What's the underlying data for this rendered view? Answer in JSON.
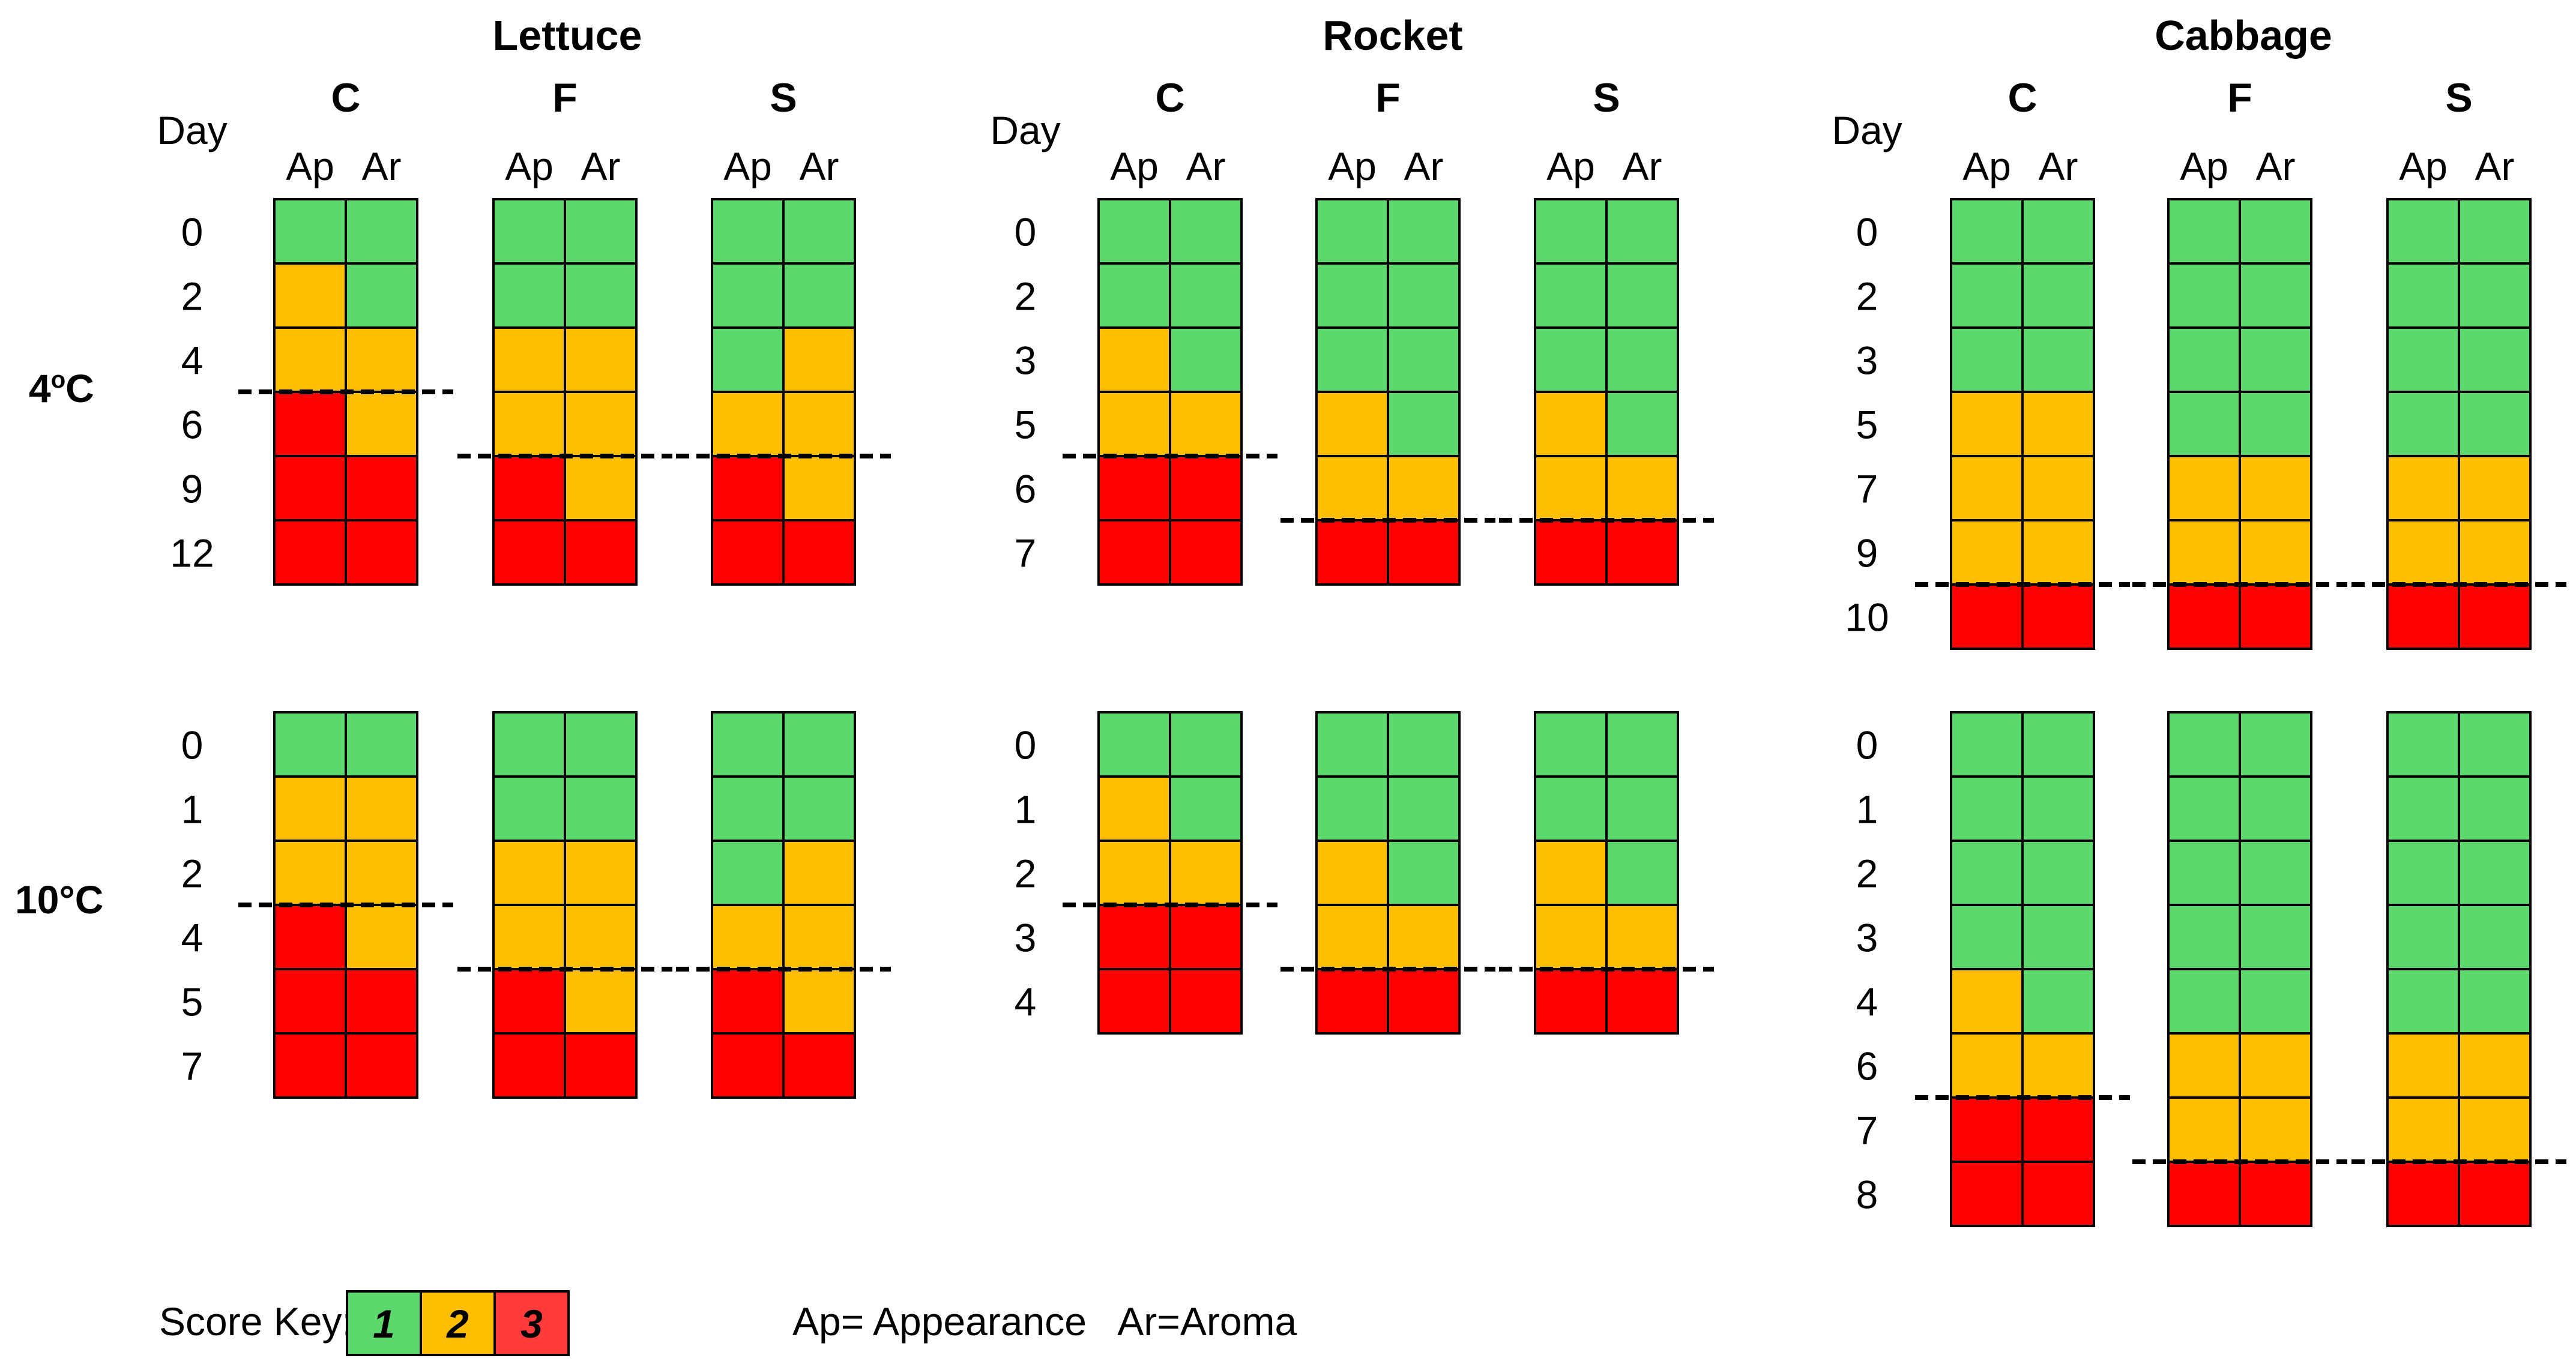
{
  "colors": {
    "1": "#5dd86c",
    "2": "#ffbf00",
    "3": "#ff0000",
    "key3": "#ff3b3b",
    "line": "#000000",
    "border": "#000000"
  },
  "day_label": "Day",
  "column_labels": [
    "Ap",
    "Ar"
  ],
  "treatments": [
    "C",
    "F",
    "S"
  ],
  "temperatures": [
    {
      "label_main": "4",
      "label_deg": "o",
      "label_unit": "C"
    },
    {
      "label_main": "10°C"
    }
  ],
  "crops": [
    {
      "name": "Lettuce",
      "rows": [
        {
          "days": [
            "0",
            "2",
            "4",
            "6",
            "9",
            "12"
          ],
          "treatments": [
            {
              "name": "C",
              "scores": [
                [
                  1,
                  1
                ],
                [
                  2,
                  1
                ],
                [
                  2,
                  2
                ],
                [
                  3,
                  2
                ],
                [
                  3,
                  3
                ],
                [
                  3,
                  3
                ]
              ],
              "cutoff": 3
            },
            {
              "name": "F",
              "scores": [
                [
                  1,
                  1
                ],
                [
                  1,
                  1
                ],
                [
                  2,
                  2
                ],
                [
                  2,
                  2
                ],
                [
                  3,
                  2
                ],
                [
                  3,
                  3
                ]
              ],
              "cutoff": 4
            },
            {
              "name": "S",
              "scores": [
                [
                  1,
                  1
                ],
                [
                  1,
                  1
                ],
                [
                  1,
                  2
                ],
                [
                  2,
                  2
                ],
                [
                  3,
                  2
                ],
                [
                  3,
                  3
                ]
              ],
              "cutoff": 4
            }
          ]
        },
        {
          "days": [
            "0",
            "1",
            "2",
            "4",
            "5",
            "7"
          ],
          "treatments": [
            {
              "name": "C",
              "scores": [
                [
                  1,
                  1
                ],
                [
                  2,
                  2
                ],
                [
                  2,
                  2
                ],
                [
                  3,
                  2
                ],
                [
                  3,
                  3
                ],
                [
                  3,
                  3
                ]
              ],
              "cutoff": 3
            },
            {
              "name": "F",
              "scores": [
                [
                  1,
                  1
                ],
                [
                  1,
                  1
                ],
                [
                  2,
                  2
                ],
                [
                  2,
                  2
                ],
                [
                  3,
                  2
                ],
                [
                  3,
                  3
                ]
              ],
              "cutoff": 4
            },
            {
              "name": "S",
              "scores": [
                [
                  1,
                  1
                ],
                [
                  1,
                  1
                ],
                [
                  1,
                  2
                ],
                [
                  2,
                  2
                ],
                [
                  3,
                  2
                ],
                [
                  3,
                  3
                ]
              ],
              "cutoff": 4
            }
          ]
        }
      ]
    },
    {
      "name": "Rocket",
      "rows": [
        {
          "days": [
            "0",
            "2",
            "3",
            "5",
            "6",
            "7"
          ],
          "treatments": [
            {
              "name": "C",
              "scores": [
                [
                  1,
                  1
                ],
                [
                  1,
                  1
                ],
                [
                  2,
                  1
                ],
                [
                  2,
                  2
                ],
                [
                  3,
                  3
                ],
                [
                  3,
                  3
                ]
              ],
              "cutoff": 4
            },
            {
              "name": "F",
              "scores": [
                [
                  1,
                  1
                ],
                [
                  1,
                  1
                ],
                [
                  1,
                  1
                ],
                [
                  2,
                  1
                ],
                [
                  2,
                  2
                ],
                [
                  3,
                  3
                ]
              ],
              "cutoff": 5
            },
            {
              "name": "S",
              "scores": [
                [
                  1,
                  1
                ],
                [
                  1,
                  1
                ],
                [
                  1,
                  1
                ],
                [
                  2,
                  1
                ],
                [
                  2,
                  2
                ],
                [
                  3,
                  3
                ]
              ],
              "cutoff": 5
            }
          ]
        },
        {
          "days": [
            "0",
            "1",
            "2",
            "3",
            "4"
          ],
          "treatments": [
            {
              "name": "C",
              "scores": [
                [
                  1,
                  1
                ],
                [
                  2,
                  1
                ],
                [
                  2,
                  2
                ],
                [
                  3,
                  3
                ],
                [
                  3,
                  3
                ]
              ],
              "cutoff": 3
            },
            {
              "name": "F",
              "scores": [
                [
                  1,
                  1
                ],
                [
                  1,
                  1
                ],
                [
                  2,
                  1
                ],
                [
                  2,
                  2
                ],
                [
                  3,
                  3
                ]
              ],
              "cutoff": 4
            },
            {
              "name": "S",
              "scores": [
                [
                  1,
                  1
                ],
                [
                  1,
                  1
                ],
                [
                  2,
                  1
                ],
                [
                  2,
                  2
                ],
                [
                  3,
                  3
                ]
              ],
              "cutoff": 4
            }
          ]
        }
      ]
    },
    {
      "name": "Cabbage",
      "rows": [
        {
          "days": [
            "0",
            "2",
            "3",
            "5",
            "7",
            "9",
            "10"
          ],
          "treatments": [
            {
              "name": "C",
              "scores": [
                [
                  1,
                  1
                ],
                [
                  1,
                  1
                ],
                [
                  1,
                  1
                ],
                [
                  2,
                  2
                ],
                [
                  2,
                  2
                ],
                [
                  2,
                  2
                ],
                [
                  3,
                  3
                ]
              ],
              "cutoff": 6
            },
            {
              "name": "F",
              "scores": [
                [
                  1,
                  1
                ],
                [
                  1,
                  1
                ],
                [
                  1,
                  1
                ],
                [
                  1,
                  1
                ],
                [
                  2,
                  2
                ],
                [
                  2,
                  2
                ],
                [
                  3,
                  3
                ]
              ],
              "cutoff": 6
            },
            {
              "name": "S",
              "scores": [
                [
                  1,
                  1
                ],
                [
                  1,
                  1
                ],
                [
                  1,
                  1
                ],
                [
                  1,
                  1
                ],
                [
                  2,
                  2
                ],
                [
                  2,
                  2
                ],
                [
                  3,
                  3
                ]
              ],
              "cutoff": 6
            }
          ]
        },
        {
          "days": [
            "0",
            "1",
            "2",
            "3",
            "4",
            "6",
            "7",
            "8"
          ],
          "treatments": [
            {
              "name": "C",
              "scores": [
                [
                  1,
                  1
                ],
                [
                  1,
                  1
                ],
                [
                  1,
                  1
                ],
                [
                  1,
                  1
                ],
                [
                  2,
                  1
                ],
                [
                  2,
                  2
                ],
                [
                  3,
                  3
                ],
                [
                  3,
                  3
                ]
              ],
              "cutoff": 6
            },
            {
              "name": "F",
              "scores": [
                [
                  1,
                  1
                ],
                [
                  1,
                  1
                ],
                [
                  1,
                  1
                ],
                [
                  1,
                  1
                ],
                [
                  1,
                  1
                ],
                [
                  2,
                  2
                ],
                [
                  2,
                  2
                ],
                [
                  3,
                  3
                ]
              ],
              "cutoff": 7
            },
            {
              "name": "S",
              "scores": [
                [
                  1,
                  1
                ],
                [
                  1,
                  1
                ],
                [
                  1,
                  1
                ],
                [
                  1,
                  1
                ],
                [
                  1,
                  1
                ],
                [
                  2,
                  2
                ],
                [
                  2,
                  2
                ],
                [
                  3,
                  3
                ]
              ],
              "cutoff": 7
            }
          ]
        }
      ]
    }
  ],
  "legend": {
    "title": "Score Key:",
    "items": [
      "1",
      "2",
      "3"
    ],
    "abbreviations": "Ap= Appearance   Ar=Aroma"
  }
}
